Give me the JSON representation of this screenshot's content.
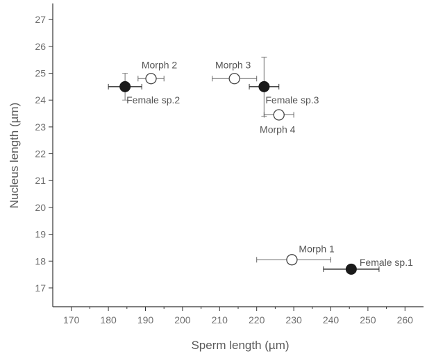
{
  "chart_data": {
    "type": "scatter",
    "title": "",
    "xlabel": "Sperm length (µm)",
    "ylabel": "Nucleus length (µm)",
    "xlim": [
      165,
      265
    ],
    "ylim": [
      16.3,
      27.6
    ],
    "xticks": [
      170,
      180,
      190,
      200,
      210,
      220,
      230,
      240,
      250,
      260
    ],
    "yticks": [
      17,
      18,
      19,
      20,
      21,
      22,
      23,
      24,
      25,
      26,
      27
    ],
    "grid": false,
    "legend": "none",
    "points": [
      {
        "label": "Female sp.1",
        "x": 245.5,
        "y": 17.7,
        "xerr": [
          238,
          253
        ],
        "yerr": null,
        "marker": "filled",
        "label_pos": "right"
      },
      {
        "label": "Female sp.2",
        "x": 184.5,
        "y": 24.5,
        "xerr": [
          180,
          189
        ],
        "yerr": [
          24,
          25
        ],
        "marker": "filled",
        "label_pos": "below-right"
      },
      {
        "label": "Female sp.3",
        "x": 222,
        "y": 24.5,
        "xerr": [
          218,
          226
        ],
        "yerr": [
          23.4,
          25.6
        ],
        "marker": "filled",
        "label_pos": "below-right"
      },
      {
        "label": "Morph 1",
        "x": 229.5,
        "y": 18.05,
        "xerr": [
          220,
          240
        ],
        "yerr": null,
        "marker": "open",
        "label_pos": "above-right"
      },
      {
        "label": "Morph 2",
        "x": 191.5,
        "y": 24.8,
        "xerr": [
          188,
          195
        ],
        "yerr": null,
        "marker": "open",
        "label_pos": "above"
      },
      {
        "label": "Morph 3",
        "x": 214,
        "y": 24.8,
        "xerr": [
          208,
          220
        ],
        "yerr": null,
        "marker": "open",
        "label_pos": "above-left"
      },
      {
        "label": "Morph 4",
        "x": 226,
        "y": 23.45,
        "xerr": [
          222,
          230
        ],
        "yerr": null,
        "marker": "open",
        "label_pos": "below"
      }
    ]
  },
  "colors": {
    "filled_marker": "#1a1a1a",
    "open_marker_stroke": "#444444",
    "open_marker_fill": "#ffffff",
    "axis": "#333333",
    "error_bar_filled": "#333333",
    "error_bar_open": "#666666"
  }
}
